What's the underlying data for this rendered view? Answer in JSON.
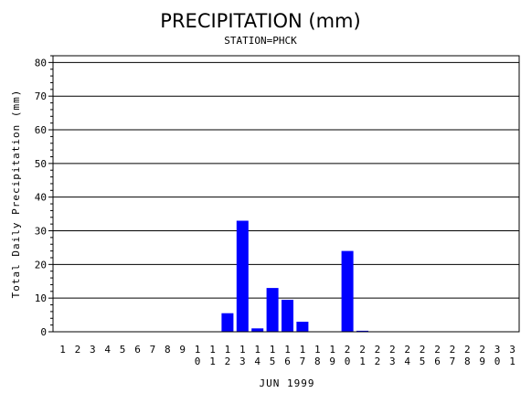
{
  "chart_data": {
    "type": "bar",
    "title": "PRECIPITATION (mm)",
    "subtitle": "STATION=PHCK",
    "xlabel": "JUN 1999",
    "ylabel": "Total Daily Precipitation (mm)",
    "ylim": [
      0,
      82
    ],
    "yticks": [
      0,
      10,
      20,
      30,
      40,
      50,
      60,
      70,
      80
    ],
    "grid": true,
    "bar_color": "#0000ff",
    "categories": [
      "1",
      "2",
      "3",
      "4",
      "5",
      "6",
      "7",
      "8",
      "9",
      "10",
      "11",
      "12",
      "13",
      "14",
      "15",
      "16",
      "17",
      "18",
      "19",
      "20",
      "21",
      "22",
      "23",
      "24",
      "25",
      "26",
      "27",
      "28",
      "29",
      "30",
      "31"
    ],
    "values": [
      0,
      0,
      0,
      0,
      0,
      0,
      0,
      0,
      0,
      0,
      0,
      5.5,
      33,
      1,
      13,
      9.5,
      3,
      0,
      0,
      24,
      0.3,
      0,
      0,
      0,
      0,
      0,
      0,
      0,
      0,
      0,
      0
    ]
  }
}
